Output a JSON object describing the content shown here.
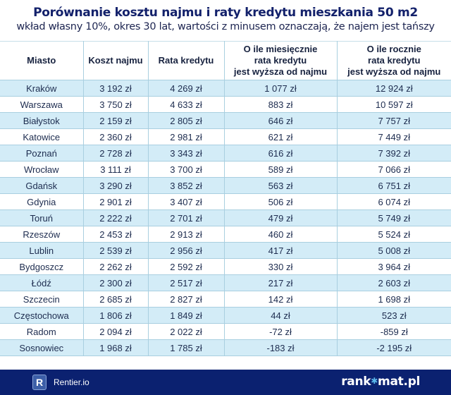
{
  "header": {
    "title": "Porównanie kosztu najmu i raty kredytu mieszkania 50 m2",
    "subtitle": "wkład własny 10%, okres 30 lat, wartości z minusem oznaczają, że najem jest tańszy"
  },
  "table": {
    "columns": [
      "Miasto",
      "Koszt najmu",
      "Rata kredytu",
      "O ile miesięcznie\nrata kredytu\njest wyższa od najmu",
      "O ile rocznie\nrata kredytu\njest wyższa od najmu"
    ],
    "rows": [
      [
        "Kraków",
        "3 192 zł",
        "4 269 zł",
        "1 077 zł",
        "12 924 zł"
      ],
      [
        "Warszawa",
        "3 750 zł",
        "4 633 zł",
        "883 zł",
        "10 597 zł"
      ],
      [
        "Białystok",
        "2 159 zł",
        "2 805 zł",
        "646 zł",
        "7 757 zł"
      ],
      [
        "Katowice",
        "2 360 zł",
        "2 981 zł",
        "621 zł",
        "7 449 zł"
      ],
      [
        "Poznań",
        "2 728 zł",
        "3 343 zł",
        "616 zł",
        "7 392 zł"
      ],
      [
        "Wrocław",
        "3 111 zł",
        "3 700 zł",
        "589 zł",
        "7 066 zł"
      ],
      [
        "Gdańsk",
        "3 290 zł",
        "3 852 zł",
        "563 zł",
        "6 751 zł"
      ],
      [
        "Gdynia",
        "2 901 zł",
        "3 407 zł",
        "506 zł",
        "6 074 zł"
      ],
      [
        "Toruń",
        "2 222 zł",
        "2 701 zł",
        "479 zł",
        "5 749 zł"
      ],
      [
        "Rzeszów",
        "2 453 zł",
        "2 913 zł",
        "460 zł",
        "5 524 zł"
      ],
      [
        "Lublin",
        "2 539 zł",
        "2 956 zł",
        "417 zł",
        "5 008 zł"
      ],
      [
        "Bydgoszcz",
        "2 262 zł",
        "2 592 zł",
        "330 zł",
        "3 964 zł"
      ],
      [
        "Łódź",
        "2 300 zł",
        "2 517 zł",
        "217 zł",
        "2 603 zł"
      ],
      [
        "Szczecin",
        "2 685 zł",
        "2 827 zł",
        "142 zł",
        "1 698 zł"
      ],
      [
        "Częstochowa",
        "1 806 zł",
        "1 849 zł",
        "44 zł",
        "523 zł"
      ],
      [
        "Radom",
        "2 094 zł",
        "2 022 zł",
        "-72 zł",
        "-859 zł"
      ],
      [
        "Sosnowiec",
        "1 968 zł",
        "1 785 zł",
        "-183 zł",
        "-2 195 zł"
      ]
    ]
  },
  "footer": {
    "left_logo_letter": "R",
    "left_logo_label": "Rentier.io",
    "right_logo_prefix": "rank",
    "right_logo_star": "✱",
    "right_logo_suffix": "mat.pl"
  },
  "colors": {
    "title": "#13216b",
    "row_stripe": "#d3ecf7",
    "border": "#a9cfe0",
    "footer_bg": "#0b2170"
  }
}
